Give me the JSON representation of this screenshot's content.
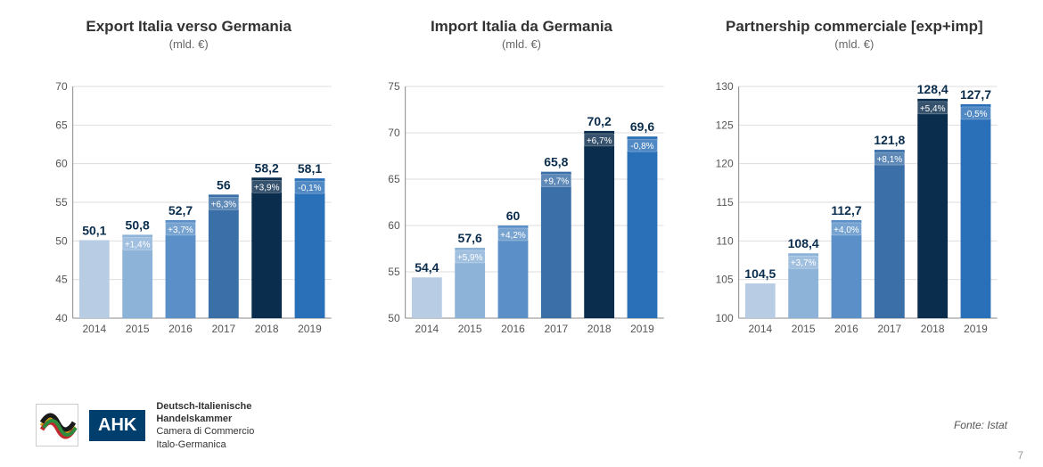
{
  "charts": [
    {
      "title": "Export Italia verso Germania",
      "subtitle": "(mld. €)",
      "ylim": [
        40,
        70
      ],
      "ytick_step": 5,
      "categories": [
        "2014",
        "2015",
        "2016",
        "2017",
        "2018",
        "2019"
      ],
      "values": [
        50.1,
        50.8,
        52.7,
        56,
        58.2,
        58.1
      ],
      "value_labels": [
        "50,1",
        "50,8",
        "52,7",
        "56",
        "58,2",
        "58,1"
      ],
      "bar_colors": [
        "#b8cce4",
        "#8db3d9",
        "#5a8fc7",
        "#3b6fa8",
        "#0a2d4d",
        "#2a70b8"
      ],
      "pct_labels": [
        "",
        "+1,4%",
        "+3,7%",
        "+6,3%",
        "+3,9%",
        "-0,1%"
      ]
    },
    {
      "title": "Import Italia da Germania",
      "subtitle": "(mld. €)",
      "ylim": [
        50,
        75
      ],
      "ytick_step": 5,
      "categories": [
        "2014",
        "2015",
        "2016",
        "2017",
        "2018",
        "2019"
      ],
      "values": [
        54.4,
        57.6,
        60,
        65.8,
        70.2,
        69.6
      ],
      "value_labels": [
        "54,4",
        "57,6",
        "60",
        "65,8",
        "70,2",
        "69,6"
      ],
      "bar_colors": [
        "#b8cce4",
        "#8db3d9",
        "#5a8fc7",
        "#3b6fa8",
        "#0a2d4d",
        "#2a70b8"
      ],
      "pct_labels": [
        "",
        "+5,9%",
        "+4,2%",
        "+9,7%",
        "+6,7%",
        "-0,8%"
      ]
    },
    {
      "title": "Partnership commerciale [exp+imp]",
      "subtitle": "(mld. €)",
      "ylim": [
        100,
        130
      ],
      "ytick_step": 5,
      "categories": [
        "2014",
        "2015",
        "2016",
        "2017",
        "2018",
        "2019"
      ],
      "values": [
        104.5,
        108.4,
        112.7,
        121.8,
        128.4,
        127.7
      ],
      "value_labels": [
        "104,5",
        "108,4",
        "112,7",
        "121,8",
        "128,4",
        "127,7"
      ],
      "bar_colors": [
        "#b8cce4",
        "#8db3d9",
        "#5a8fc7",
        "#3b6fa8",
        "#0a2d4d",
        "#2a70b8"
      ],
      "pct_labels": [
        "",
        "+3,7%",
        "+4,0%",
        "+8,1%",
        "+5,4%",
        "-0,5%"
      ]
    }
  ],
  "logo": {
    "ahk": "AHK",
    "line1": "Deutsch-Italienische",
    "line2": "Handelskammer",
    "line3": "Camera di Commercio",
    "line4": "Italo-Germanica"
  },
  "source": "Fonte: Istat",
  "page_number": "7",
  "style": {
    "title_color": "#333333",
    "subtitle_color": "#666666",
    "axis_color": "#888888",
    "grid_color": "#dddddd",
    "value_label_color": "#0a2d4d",
    "pct_label_color": "#ffffff",
    "background": "#ffffff",
    "title_fontsize": 17,
    "subtitle_fontsize": 13,
    "axis_fontsize": 12,
    "value_fontsize": 14,
    "pct_fontsize": 10,
    "bar_width_ratio": 0.7
  }
}
